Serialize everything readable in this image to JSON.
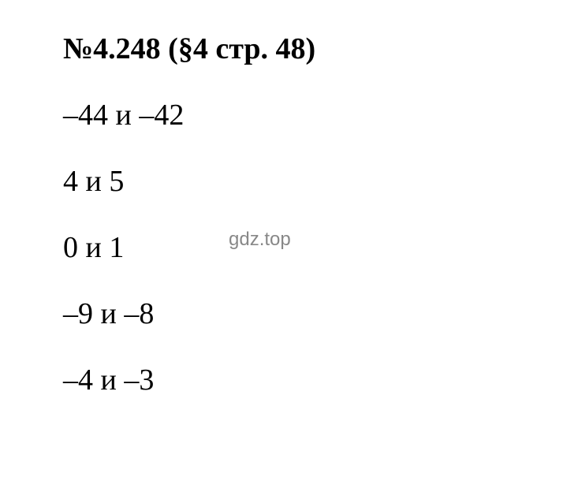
{
  "heading": "№4.248 (§4 стр. 48)",
  "lines": [
    "–44 и –42",
    "4 и 5",
    "0 и 1",
    "–9 и –8",
    "–4 и –3"
  ],
  "watermark": "gdz.top",
  "styles": {
    "background_color": "#ffffff",
    "text_color": "#000000",
    "watermark_color": "#888888",
    "heading_fontsize": 38,
    "line_fontsize": 38,
    "watermark_fontsize": 24,
    "font_family": "Times New Roman"
  }
}
